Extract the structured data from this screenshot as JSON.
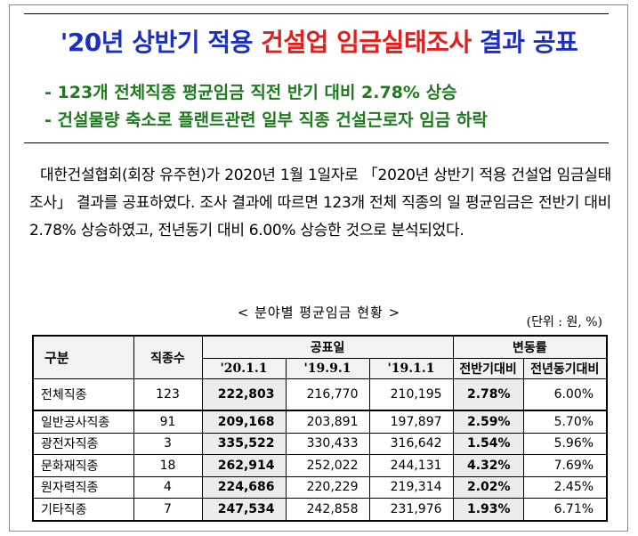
{
  "header": {
    "title_part1": "'20년 상반기 적용 ",
    "title_part2": "건설업 임금실태조사",
    "title_part3": " 결과 공표",
    "sub1": "- 123개 전체직종 평균임금 직전 반기 대비 2.78% 상승",
    "sub2": "- 건설물량 축소로 플랜트관련 일부 직종 건설근로자 임금 하락"
  },
  "body": {
    "paragraph": "대한건설협회(회장 유주현)가 2020년 1월 1일자로 「2020년 상반기 적용 건설업 임금실태조사」 결과를 공표하였다. 조사 결과에 따르면 123개 전체 직종의 일 평균임금은 전반기 대비 2.78% 상승하였고, 전년동기 대비 6.00% 상승한 것으로 분석되었다."
  },
  "table": {
    "title": "< 분야별 평균임금 현황 >",
    "unit": "(단위 : 원, %)",
    "headers": {
      "gubun": "구분",
      "count": "직종수",
      "announced": "공표일",
      "change": "변동률",
      "d1": "'20.1.1",
      "d2": "'19.9.1",
      "d3": "'19.1.1",
      "c1": "전반기대비",
      "c2": "전년동기대비"
    },
    "rows": [
      {
        "name": "전체직종",
        "count": "123",
        "v1": "222,803",
        "v2": "216,770",
        "v3": "210,195",
        "c1": "2.78%",
        "c2": "6.00%"
      },
      {
        "name": "일반공사직종",
        "count": "91",
        "v1": "209,168",
        "v2": "203,891",
        "v3": "197,897",
        "c1": "2.59%",
        "c2": "5.70%"
      },
      {
        "name": "광전자직종",
        "count": "3",
        "v1": "335,522",
        "v2": "330,433",
        "v3": "316,642",
        "c1": "1.54%",
        "c2": "5.96%"
      },
      {
        "name": "문화재직종",
        "count": "18",
        "v1": "262,914",
        "v2": "252,022",
        "v3": "244,131",
        "c1": "4.32%",
        "c2": "7.69%"
      },
      {
        "name": "원자력직종",
        "count": "4",
        "v1": "224,686",
        "v2": "220,229",
        "v3": "219,314",
        "c1": "2.02%",
        "c2": "2.45%"
      },
      {
        "name": "기타직종",
        "count": "7",
        "v1": "247,534",
        "v2": "242,858",
        "v3": "231,976",
        "c1": "1.93%",
        "c2": "6.71%"
      }
    ]
  }
}
